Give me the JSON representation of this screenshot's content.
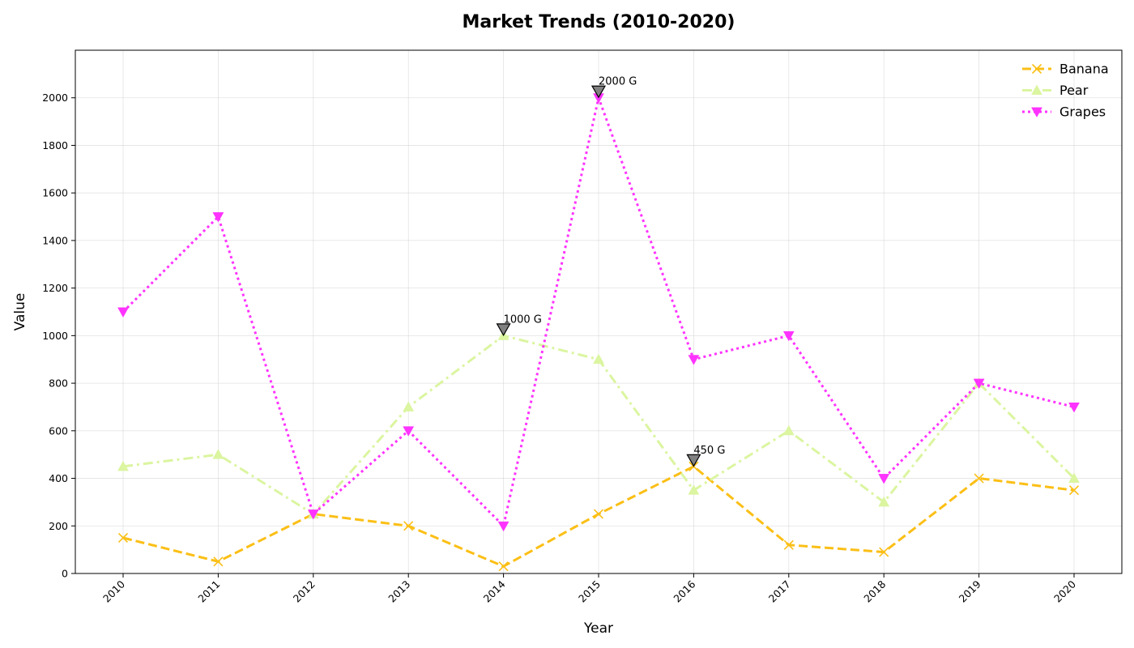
{
  "chart_data": {
    "type": "line",
    "title": "Market Trends (2010-2020)",
    "xlabel": "Year",
    "ylabel": "Value",
    "x": [
      "2010",
      "2011",
      "2012",
      "2013",
      "2014",
      "2015",
      "2016",
      "2017",
      "2018",
      "2019",
      "2020"
    ],
    "ylim": [
      0,
      2200
    ],
    "yticks": [
      0,
      200,
      400,
      600,
      800,
      1000,
      1200,
      1400,
      1600,
      1800,
      2000
    ],
    "grid": true,
    "legend_position": "top-right",
    "series": [
      {
        "name": "Banana",
        "color": "#fbbf16",
        "dash": "dashed",
        "marker": "x",
        "values": [
          150,
          50,
          250,
          200,
          30,
          250,
          450,
          120,
          90,
          400,
          350
        ]
      },
      {
        "name": "Pear",
        "color": "#dbf5a0",
        "dash": "dashdot",
        "marker": "triangle-up",
        "values": [
          450,
          500,
          250,
          700,
          1000,
          900,
          350,
          600,
          300,
          800,
          400
        ]
      },
      {
        "name": "Grapes",
        "color": "#ff33ff",
        "dash": "dotted",
        "marker": "triangle-down",
        "values": [
          1100,
          1500,
          250,
          600,
          200,
          2000,
          900,
          1000,
          400,
          800,
          700
        ]
      }
    ],
    "annotations": [
      {
        "text": "1000 G",
        "x": "2014",
        "y": 1000
      },
      {
        "text": "2000 G",
        "x": "2015",
        "y": 2000
      },
      {
        "text": "450 G",
        "x": "2016",
        "y": 450
      }
    ]
  }
}
